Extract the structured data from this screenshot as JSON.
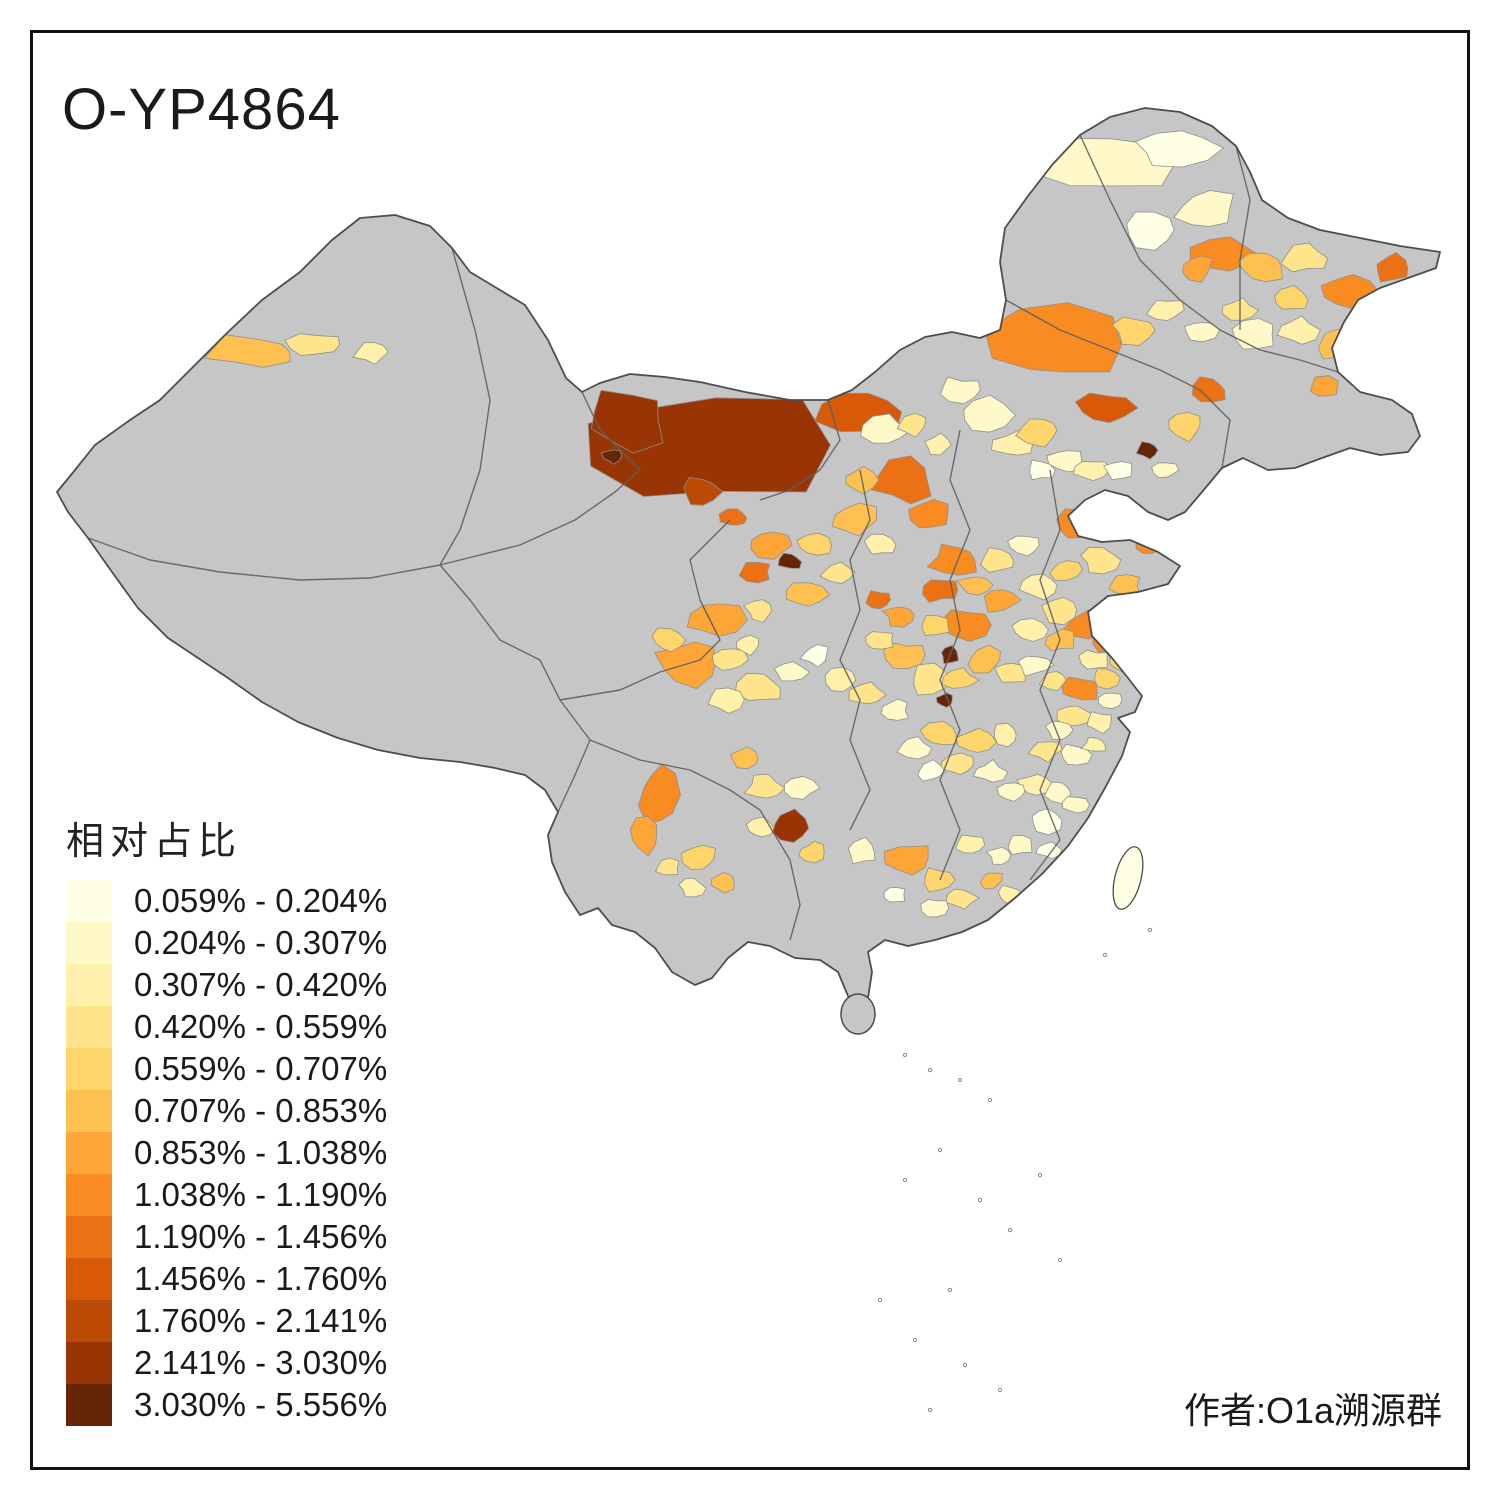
{
  "title": "O-YP4864",
  "legend": {
    "title": "相对占比",
    "classes": [
      {
        "label": "0.059% - 0.204%",
        "color": "#FFFFE5"
      },
      {
        "label": "0.204% - 0.307%",
        "color": "#FFF9C9"
      },
      {
        "label": "0.307% - 0.420%",
        "color": "#FFF1AC"
      },
      {
        "label": "0.420% - 0.559%",
        "color": "#FEE58C"
      },
      {
        "label": "0.559% - 0.707%",
        "color": "#FED56B"
      },
      {
        "label": "0.707% - 0.853%",
        "color": "#FEC050"
      },
      {
        "label": "0.853% - 1.038%",
        "color": "#FEA537"
      },
      {
        "label": "1.038% - 1.190%",
        "color": "#F88B22"
      },
      {
        "label": "1.190% - 1.456%",
        "color": "#EC7014"
      },
      {
        "label": "1.456% - 1.760%",
        "color": "#D85A09"
      },
      {
        "label": "1.760% - 2.141%",
        "color": "#BB4A05"
      },
      {
        "label": "2.141% - 3.030%",
        "color": "#993404"
      },
      {
        "label": "3.030% - 5.556%",
        "color": "#662506"
      }
    ]
  },
  "credit": "作者:O1a溯源群",
  "map": {
    "no_data_color": "#C6C6C6",
    "border_color": "#5f5f5f",
    "outline_color": "#4d4d4d",
    "background": "#FFFFFF"
  }
}
